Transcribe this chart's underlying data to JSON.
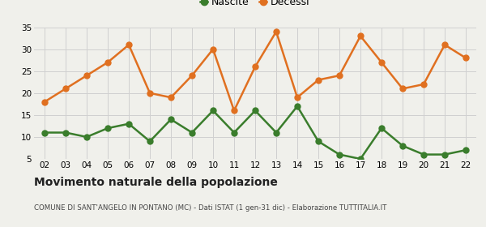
{
  "years": [
    "02",
    "03",
    "04",
    "05",
    "06",
    "07",
    "08",
    "09",
    "10",
    "11",
    "12",
    "13",
    "14",
    "15",
    "16",
    "17",
    "18",
    "19",
    "20",
    "21",
    "22"
  ],
  "nascite": [
    11,
    11,
    10,
    12,
    13,
    9,
    14,
    11,
    16,
    11,
    16,
    11,
    17,
    9,
    6,
    5,
    12,
    8,
    6,
    6,
    7
  ],
  "decessi": [
    18,
    21,
    24,
    27,
    31,
    20,
    19,
    24,
    30,
    16,
    26,
    34,
    19,
    23,
    24,
    33,
    27,
    21,
    22,
    31,
    28
  ],
  "nascite_color": "#3a7d2c",
  "decessi_color": "#e07020",
  "background_color": "#f0f0eb",
  "ylim": [
    5,
    35
  ],
  "yticks": [
    5,
    10,
    15,
    20,
    25,
    30,
    35
  ],
  "title": "Movimento naturale della popolazione",
  "subtitle": "COMUNE DI SANT'ANGELO IN PONTANO (MC) - Dati ISTAT (1 gen-31 dic) - Elaborazione TUTTITALIA.IT",
  "legend_nascite": "Nascite",
  "legend_decessi": "Decessi",
  "grid_color": "#d0d0d0",
  "marker_size": 5,
  "line_width": 1.8
}
